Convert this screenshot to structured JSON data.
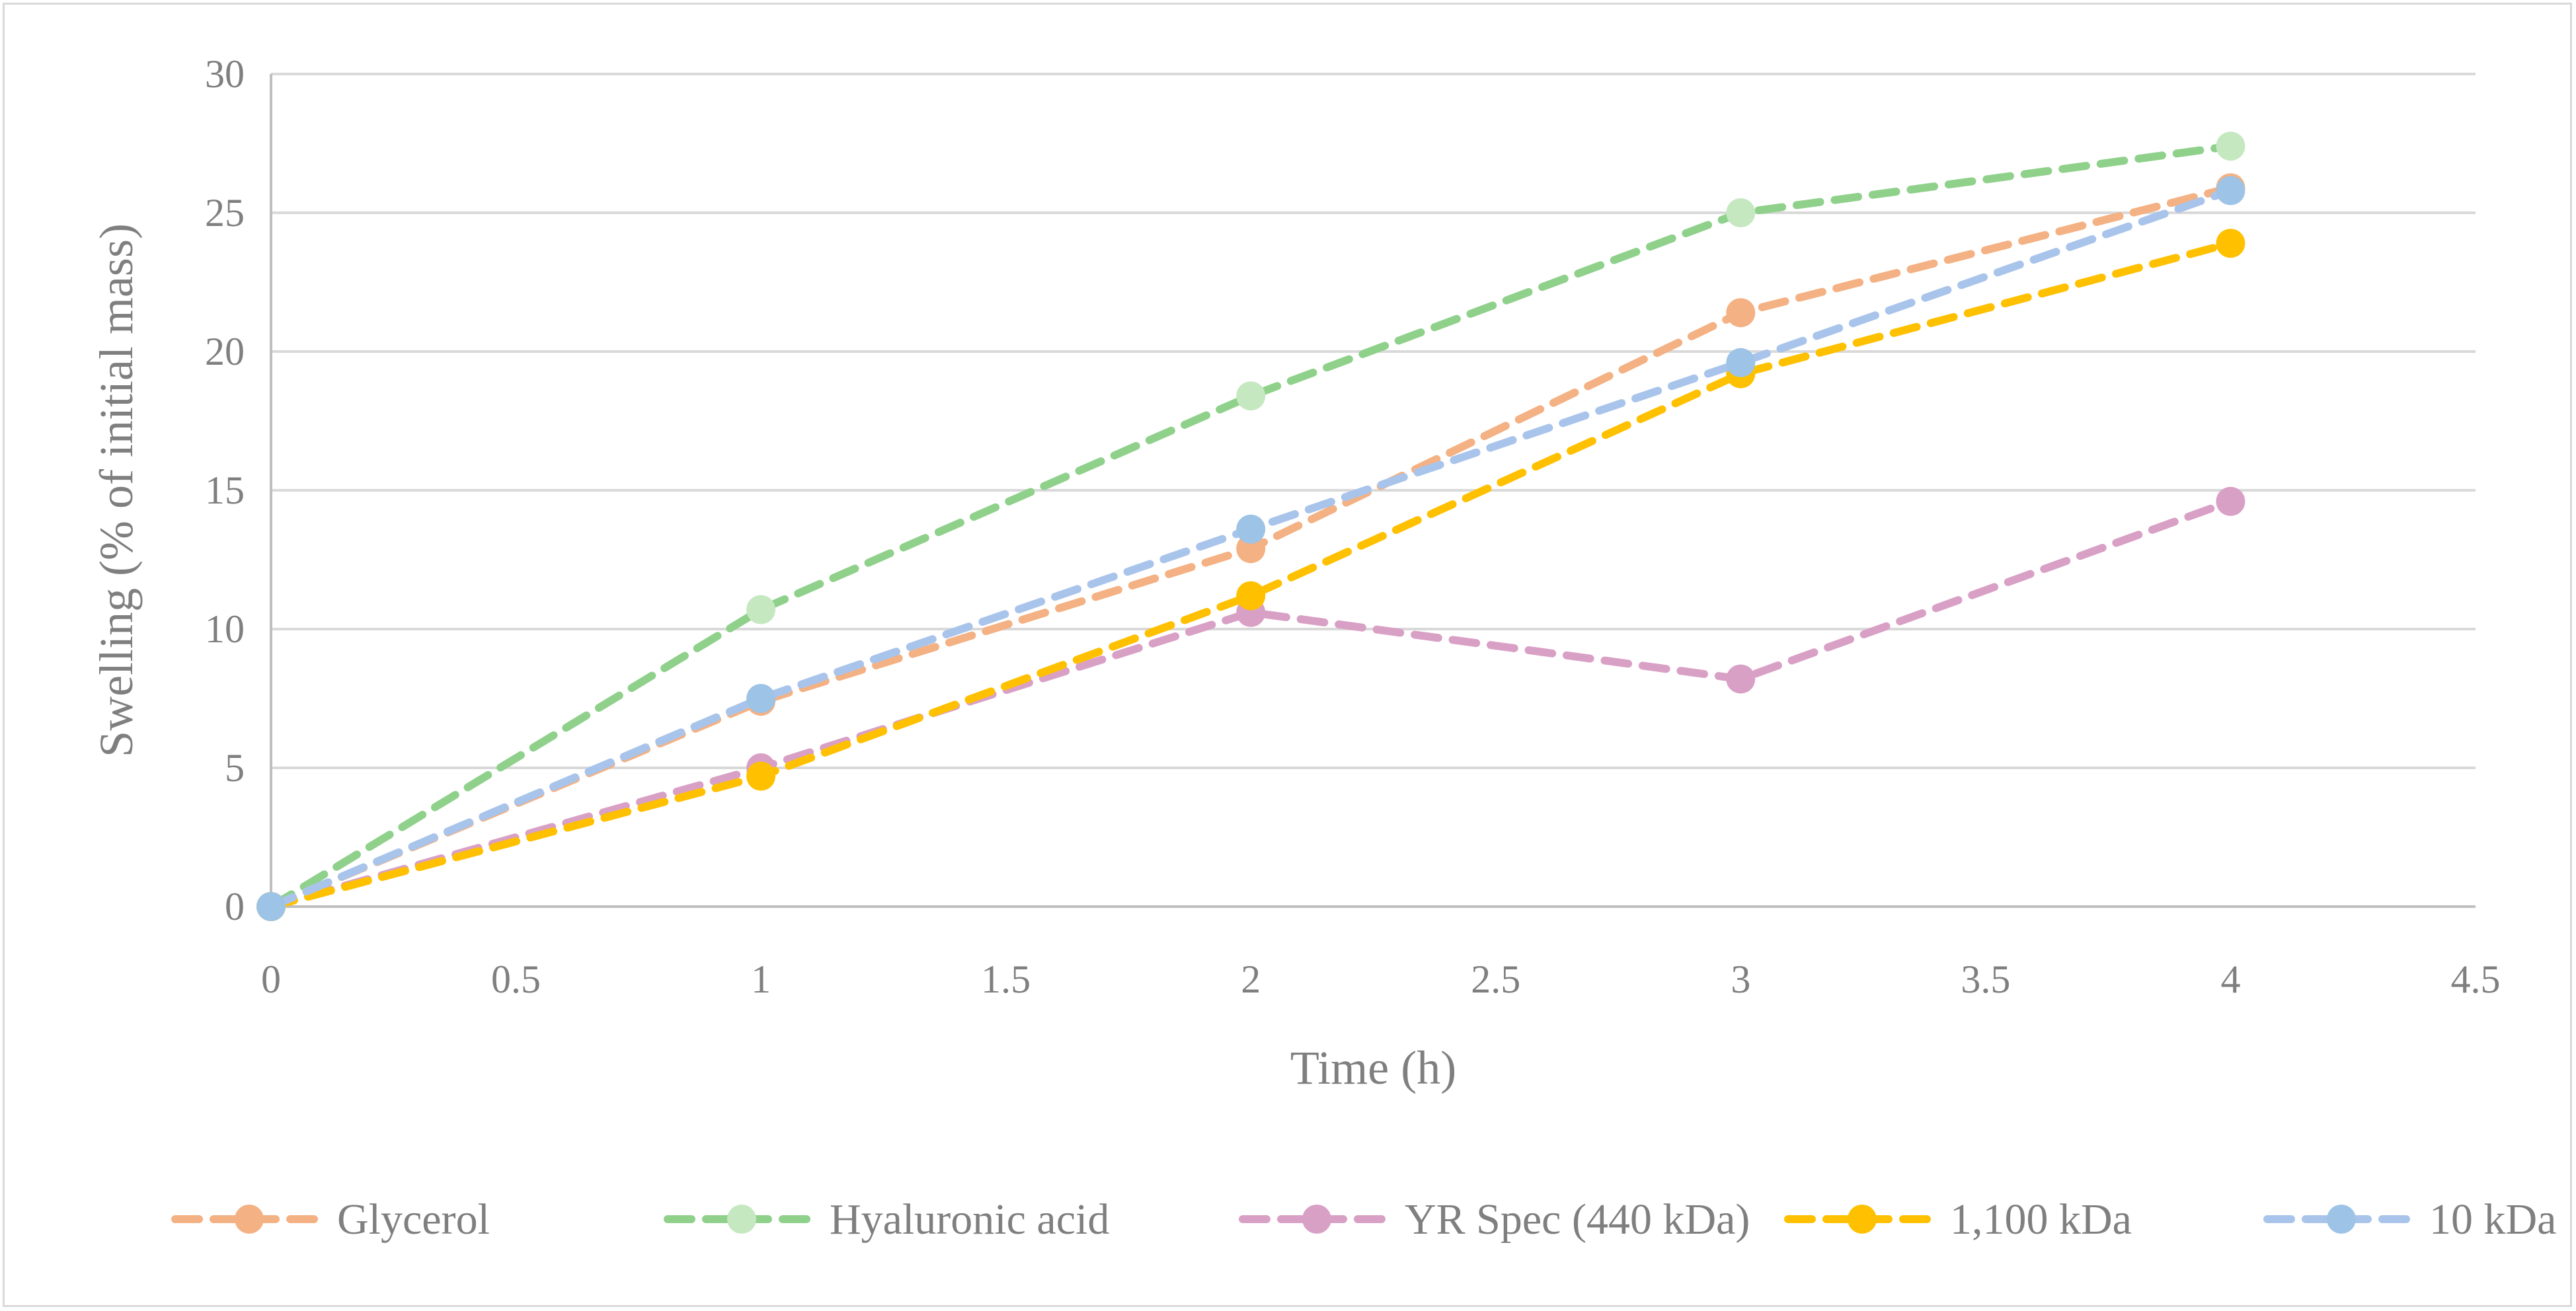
{
  "chart_data": {
    "type": "line",
    "title": "",
    "xlabel": "Time (h)",
    "ylabel": "Swelling (% of initial mass)",
    "xlim": [
      0,
      4.5
    ],
    "ylim": [
      0,
      30
    ],
    "xticks": [
      "0",
      "0.5",
      "1",
      "1.5",
      "2",
      "2.5",
      "3",
      "3.5",
      "4",
      "4.5"
    ],
    "yticks": [
      "0",
      "5",
      "10",
      "15",
      "20",
      "25",
      "30"
    ],
    "grid": "horizontal",
    "legend_position": "bottom",
    "series": [
      {
        "name": "Glycerol",
        "color": "#f4b183",
        "x": [
          0,
          1,
          2,
          3,
          4
        ],
        "values": [
          0,
          7.4,
          12.9,
          21.4,
          25.9
        ]
      },
      {
        "name": "Hyaluronic acid",
        "color": "#8fd18b",
        "marker_color": "#c5e8c1",
        "x": [
          0,
          1,
          2,
          3,
          4
        ],
        "values": [
          0,
          10.7,
          18.4,
          25.0,
          27.4
        ]
      },
      {
        "name": "YR Spec (440 kDa)",
        "color": "#d9a0c6",
        "x": [
          0,
          1,
          2,
          3,
          4
        ],
        "values": [
          0,
          5.0,
          10.6,
          8.2,
          14.6
        ]
      },
      {
        "name": "1,100 kDa",
        "color": "#ffc000",
        "x": [
          0,
          1,
          2,
          3,
          4
        ],
        "values": [
          0,
          4.7,
          11.2,
          19.2,
          23.9
        ]
      },
      {
        "name": "10 kDa",
        "color": "#a9c4eb",
        "marker_color": "#9dc3e6",
        "x": [
          0,
          1,
          2,
          3,
          4
        ],
        "values": [
          0,
          7.5,
          13.6,
          19.6,
          25.8
        ]
      }
    ]
  }
}
